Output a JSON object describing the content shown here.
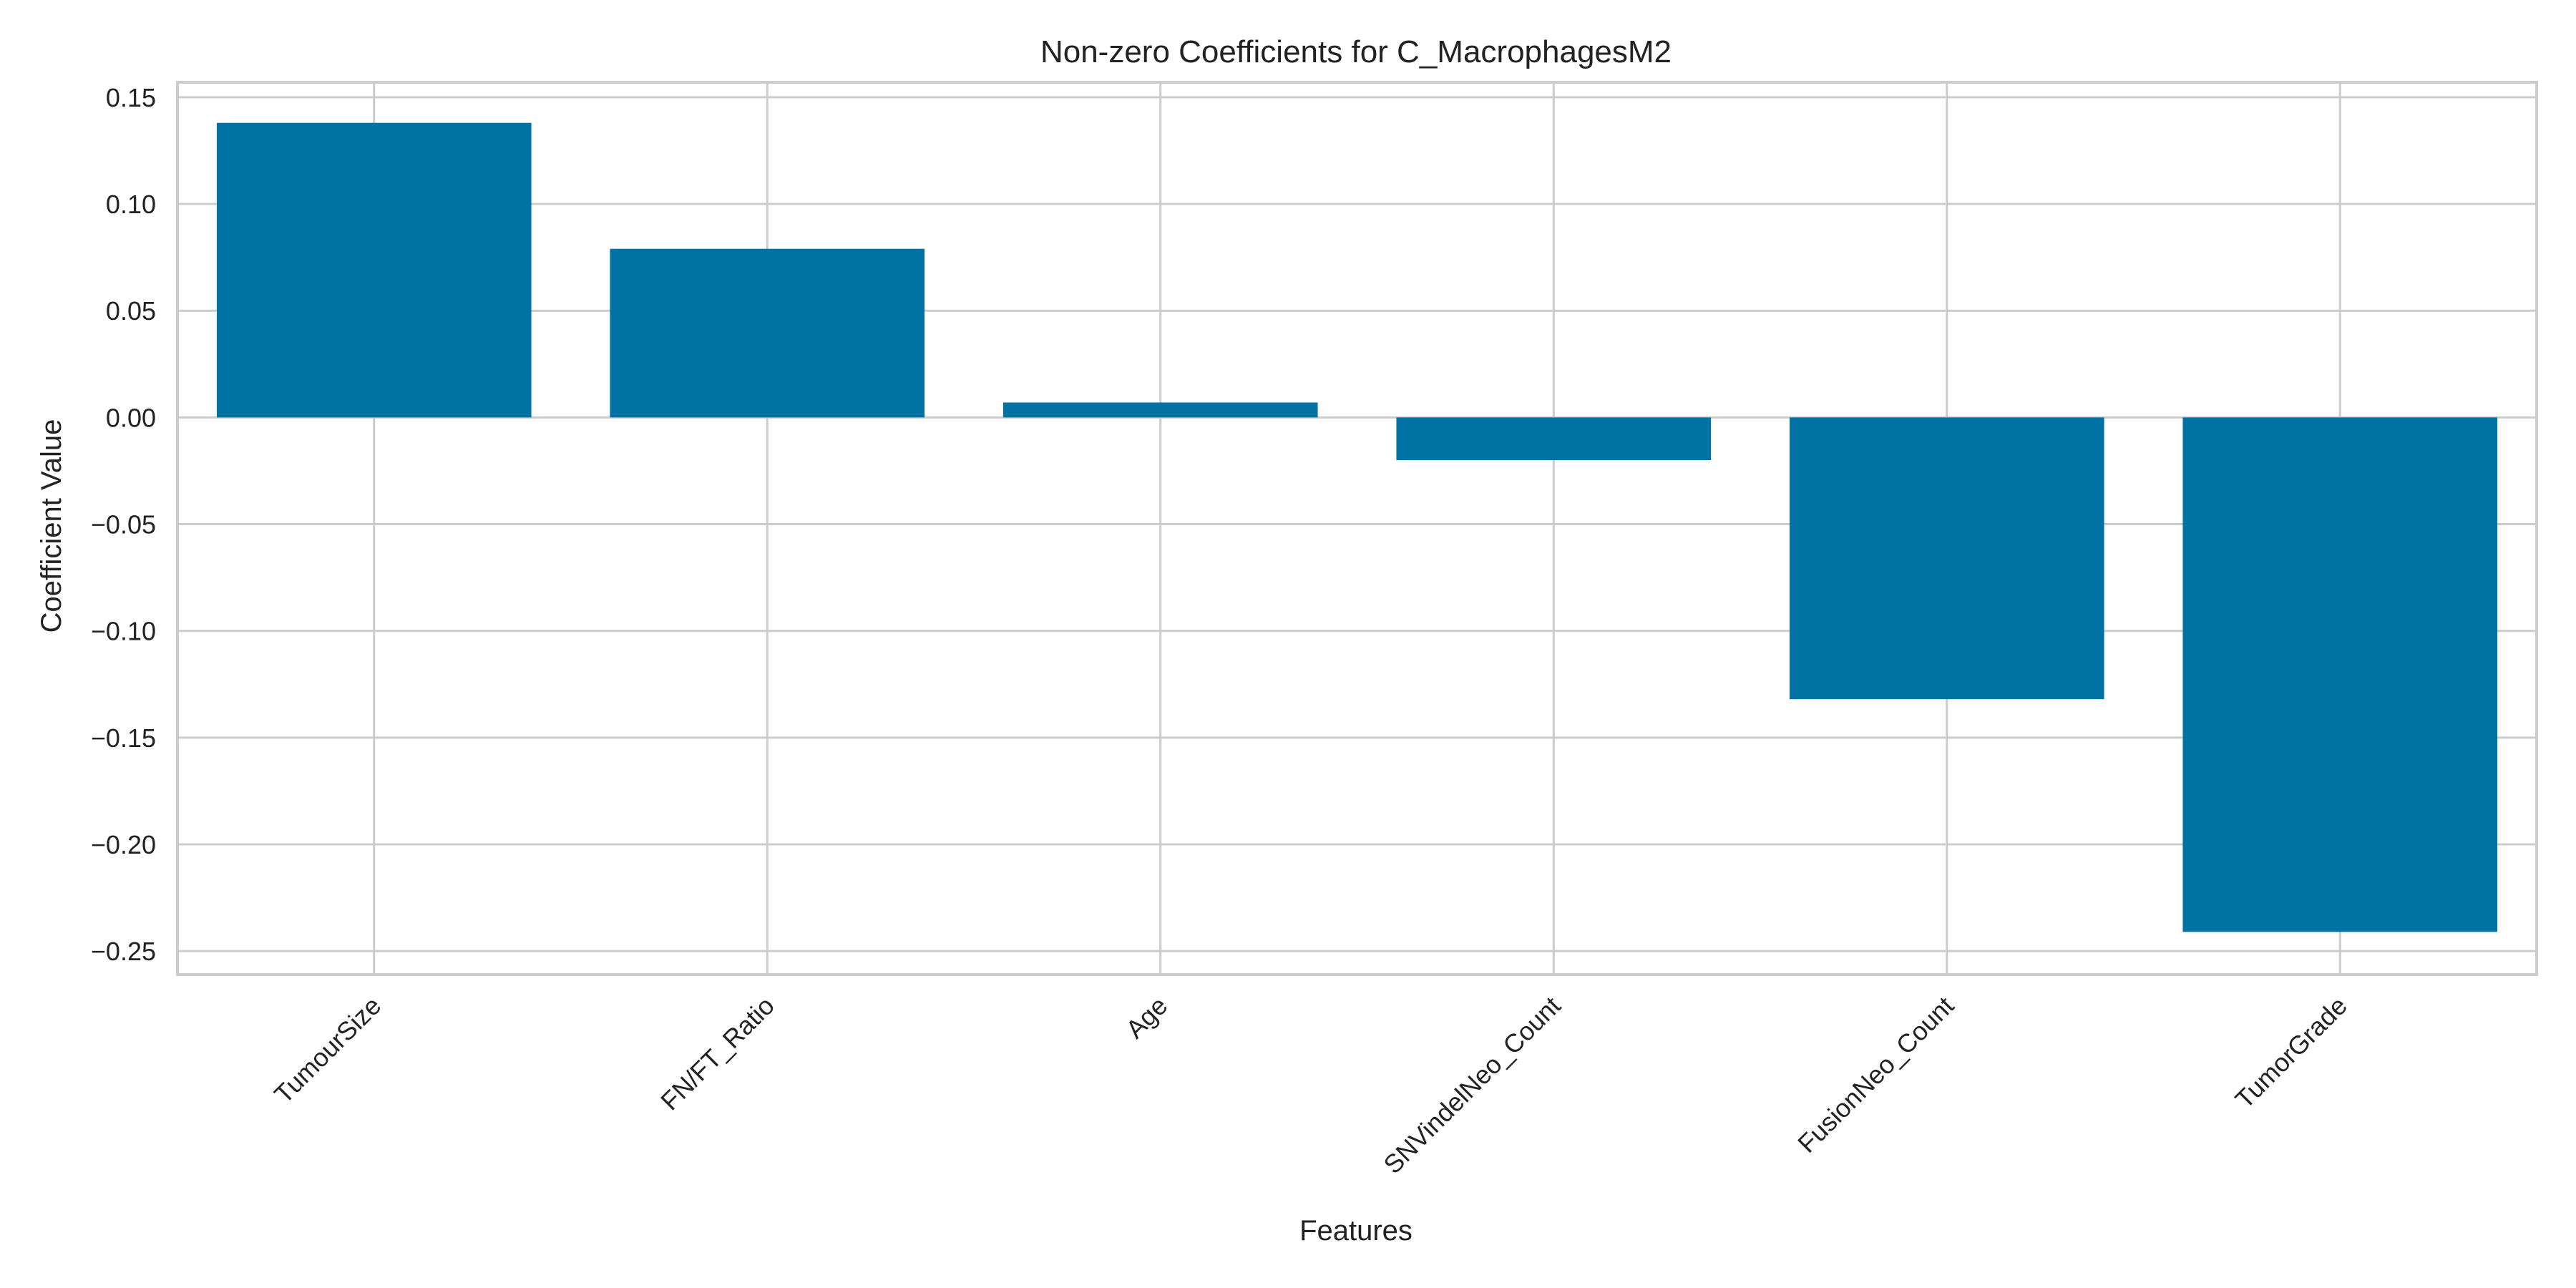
{
  "chart_data": {
    "type": "bar",
    "title": "Non-zero Coefficients for C_MacrophagesM2",
    "xlabel": "Features",
    "ylabel": "Coefficient Value",
    "categories": [
      "TumourSize",
      "FN/FT_Ratio",
      "Age",
      "SNVindelNeo_Count",
      "FusionNeo_Count",
      "TumorGrade"
    ],
    "values": [
      0.138,
      0.079,
      0.007,
      -0.02,
      -0.132,
      -0.241
    ],
    "ylim": [
      -0.261,
      0.157
    ],
    "yticks": [
      0.15,
      0.1,
      0.05,
      0.0,
      -0.05,
      -0.1,
      -0.15,
      -0.2,
      -0.25
    ],
    "ytick_labels": [
      "0.15",
      "0.10",
      "0.05",
      "0.00",
      "−0.05",
      "−0.10",
      "−0.15",
      "−0.20",
      "−0.25"
    ],
    "grid": true,
    "bar_color": "#0072a3",
    "grid_color": "#cccccc"
  }
}
